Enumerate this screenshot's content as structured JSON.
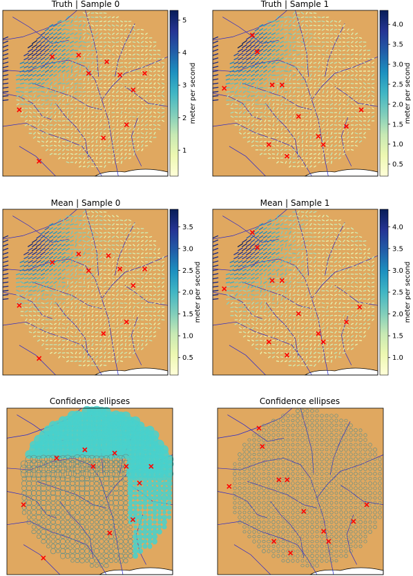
{
  "colors": {
    "land": "#e0a860",
    "river": "#2222cc",
    "sea": "#ffffff",
    "marker": "#ff0000",
    "ellipse_fill": "#48d1cc",
    "ellipse_edge": "#5f8f8a"
  },
  "colormap": "YlGnBu",
  "chart_data": [
    {
      "type": "vector_field",
      "title": "Truth | Sample 0",
      "colorbar": {
        "label": "meter per second",
        "min": 0.2,
        "max": 5.3,
        "ticks": [
          "1",
          "2",
          "3",
          "4",
          "5"
        ],
        "tick_values": [
          1,
          2,
          3,
          4,
          5
        ]
      },
      "strong_flow_region": "upper-left",
      "stations": [
        [
          0.3,
          0.72
        ],
        [
          0.46,
          0.73
        ],
        [
          0.52,
          0.62
        ],
        [
          0.63,
          0.69
        ],
        [
          0.71,
          0.61
        ],
        [
          0.86,
          0.62
        ],
        [
          0.79,
          0.52
        ],
        [
          0.1,
          0.4
        ],
        [
          0.75,
          0.31
        ],
        [
          0.61,
          0.23
        ],
        [
          0.22,
          0.09
        ]
      ]
    },
    {
      "type": "vector_field",
      "title": "Truth | Sample 1",
      "colorbar": {
        "label": "meter per second",
        "min": 0.2,
        "max": 4.35,
        "ticks": [
          "0.5",
          "1.0",
          "1.5",
          "2.0",
          "2.5",
          "3.0",
          "3.5",
          "4.0"
        ],
        "tick_values": [
          0.5,
          1.0,
          1.5,
          2.0,
          2.5,
          3.0,
          3.5,
          4.0
        ]
      },
      "strong_flow_region": "upper-left",
      "stations": [
        [
          0.24,
          0.85
        ],
        [
          0.27,
          0.75
        ],
        [
          0.07,
          0.53
        ],
        [
          0.36,
          0.55
        ],
        [
          0.42,
          0.55
        ],
        [
          0.9,
          0.4
        ],
        [
          0.52,
          0.36
        ],
        [
          0.81,
          0.3
        ],
        [
          0.64,
          0.24
        ],
        [
          0.34,
          0.19
        ],
        [
          0.67,
          0.19
        ],
        [
          0.45,
          0.12
        ]
      ]
    },
    {
      "type": "vector_field",
      "title": "Mean | Sample 0",
      "colorbar": {
        "label": "meter per second",
        "min": 0.1,
        "max": 3.9,
        "ticks": [
          "0.5",
          "1.0",
          "1.5",
          "2.0",
          "2.5",
          "3.0",
          "3.5"
        ],
        "tick_values": [
          0.5,
          1.0,
          1.5,
          2.0,
          2.5,
          3.0,
          3.5
        ]
      },
      "strong_flow_region": "upper-left",
      "stations": [
        [
          0.46,
          0.73
        ],
        [
          0.3,
          0.68
        ],
        [
          0.52,
          0.63
        ],
        [
          0.64,
          0.72
        ],
        [
          0.71,
          0.64
        ],
        [
          0.86,
          0.64
        ],
        [
          0.79,
          0.54
        ],
        [
          0.1,
          0.42
        ],
        [
          0.75,
          0.32
        ],
        [
          0.61,
          0.25
        ],
        [
          0.22,
          0.1
        ]
      ]
    },
    {
      "type": "vector_field",
      "title": "Mean | Sample 1",
      "colorbar": {
        "label": "meter per second",
        "min": 0.6,
        "max": 4.4,
        "ticks": [
          "1.0",
          "1.5",
          "2.0",
          "2.5",
          "3.0",
          "3.5",
          "4.0"
        ],
        "tick_values": [
          1.0,
          1.5,
          2.0,
          2.5,
          3.0,
          3.5,
          4.0
        ]
      },
      "strong_flow_region": "upper-left",
      "stations": [
        [
          0.24,
          0.86
        ],
        [
          0.27,
          0.77
        ],
        [
          0.07,
          0.52
        ],
        [
          0.36,
          0.57
        ],
        [
          0.42,
          0.57
        ],
        [
          0.89,
          0.41
        ],
        [
          0.52,
          0.37
        ],
        [
          0.81,
          0.32
        ],
        [
          0.64,
          0.25
        ],
        [
          0.34,
          0.2
        ],
        [
          0.67,
          0.2
        ],
        [
          0.45,
          0.12
        ]
      ]
    },
    {
      "type": "ellipses",
      "title": "Confidence ellipses",
      "large_uncertainty": true,
      "stations": [
        [
          0.3,
          0.7
        ],
        [
          0.47,
          0.75
        ],
        [
          0.52,
          0.65
        ],
        [
          0.65,
          0.73
        ],
        [
          0.72,
          0.65
        ],
        [
          0.87,
          0.65
        ],
        [
          0.8,
          0.55
        ],
        [
          0.1,
          0.42
        ],
        [
          0.76,
          0.33
        ],
        [
          0.62,
          0.25
        ],
        [
          0.22,
          0.1
        ]
      ]
    },
    {
      "type": "ellipses",
      "title": "Confidence ellipses",
      "large_uncertainty": false,
      "stations": [
        [
          0.25,
          0.88
        ],
        [
          0.27,
          0.77
        ],
        [
          0.07,
          0.53
        ],
        [
          0.37,
          0.57
        ],
        [
          0.42,
          0.57
        ],
        [
          0.9,
          0.42
        ],
        [
          0.52,
          0.38
        ],
        [
          0.82,
          0.32
        ],
        [
          0.64,
          0.26
        ],
        [
          0.34,
          0.2
        ],
        [
          0.67,
          0.2
        ],
        [
          0.44,
          0.13
        ]
      ]
    }
  ]
}
